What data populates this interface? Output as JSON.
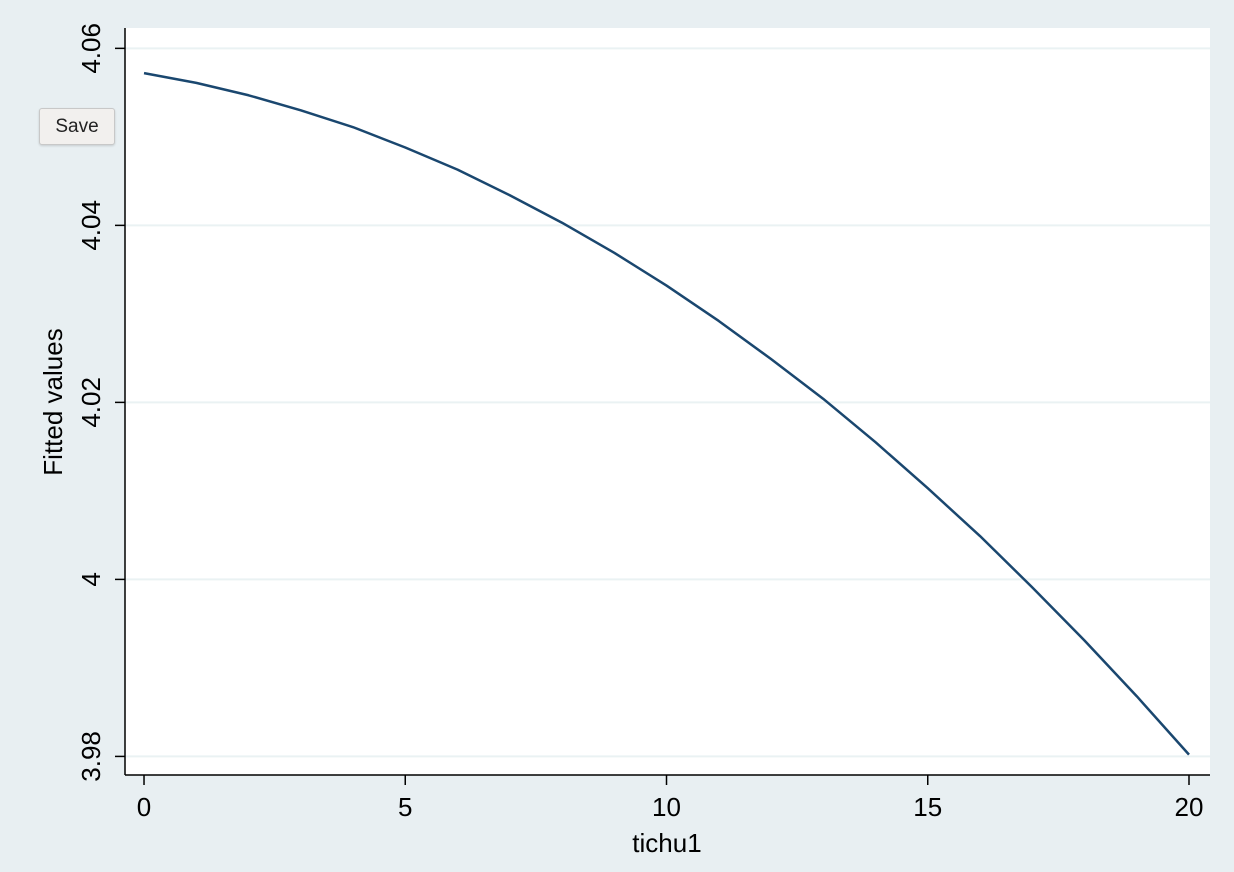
{
  "chart_data": {
    "type": "line",
    "x_label": "tichu1",
    "y_label": "Fitted values",
    "x": [
      0,
      1,
      2,
      3,
      4,
      5,
      6,
      7,
      8,
      9,
      10,
      11,
      12,
      13,
      14,
      15,
      16,
      17,
      18,
      19,
      20
    ],
    "series": [
      {
        "name": "Fitted values",
        "color": "#1a476f",
        "values": [
          4.0572,
          4.0561,
          4.0547,
          4.053,
          4.0511,
          4.0488,
          4.0463,
          4.0434,
          4.0403,
          4.0369,
          4.0332,
          4.0292,
          4.0249,
          4.0204,
          4.0155,
          4.0103,
          4.0049,
          3.9991,
          3.9931,
          3.9868,
          3.9802
        ]
      }
    ],
    "xlim": [
      -0.364,
      20.402
    ],
    "xticks": [
      0,
      5,
      10,
      15,
      20
    ],
    "ylim": [
      3.9779,
      4.0623
    ],
    "yticks": [
      3.98,
      4,
      4.02,
      4.04,
      4.06
    ],
    "grid": true,
    "legend": false
  },
  "ui": {
    "save_button": "Save"
  }
}
